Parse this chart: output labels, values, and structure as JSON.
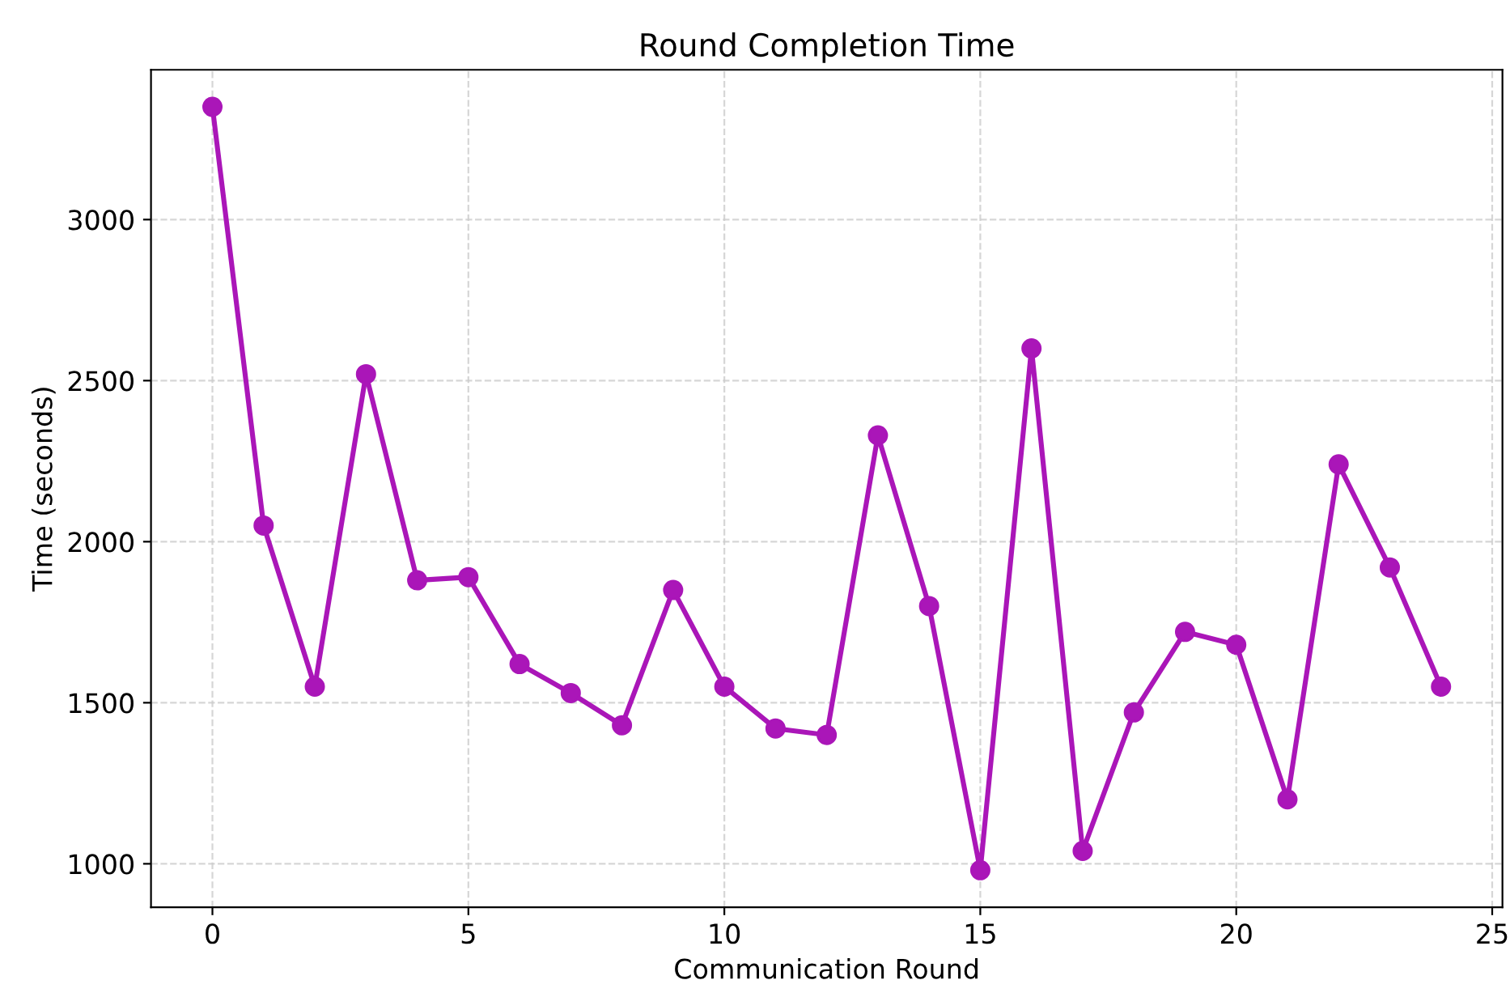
{
  "chart_data": {
    "type": "line",
    "title": "Round Completion Time",
    "xlabel": "Communication Round",
    "ylabel": "Time (seconds)",
    "x": [
      0,
      1,
      2,
      3,
      4,
      5,
      6,
      7,
      8,
      9,
      10,
      11,
      12,
      13,
      14,
      15,
      16,
      17,
      18,
      19,
      20,
      21,
      22,
      23,
      24
    ],
    "series": [
      {
        "color": "#aa16b8",
        "values": [
          3350,
          2050,
          1550,
          2520,
          1880,
          1890,
          1620,
          1530,
          1430,
          1850,
          1550,
          1420,
          1400,
          2330,
          1800,
          980,
          2600,
          1040,
          1470,
          1720,
          1680,
          1200,
          2240,
          1920,
          1550
        ]
      }
    ],
    "xlim": [
      -1.2,
      25.2
    ],
    "ylim": [
      865,
      3465
    ],
    "xticks": [
      0,
      5,
      10,
      15,
      20,
      25
    ],
    "yticks": [
      1000,
      1500,
      2000,
      2500,
      3000
    ],
    "grid": true,
    "marker": "circle",
    "line_style": "solid"
  }
}
